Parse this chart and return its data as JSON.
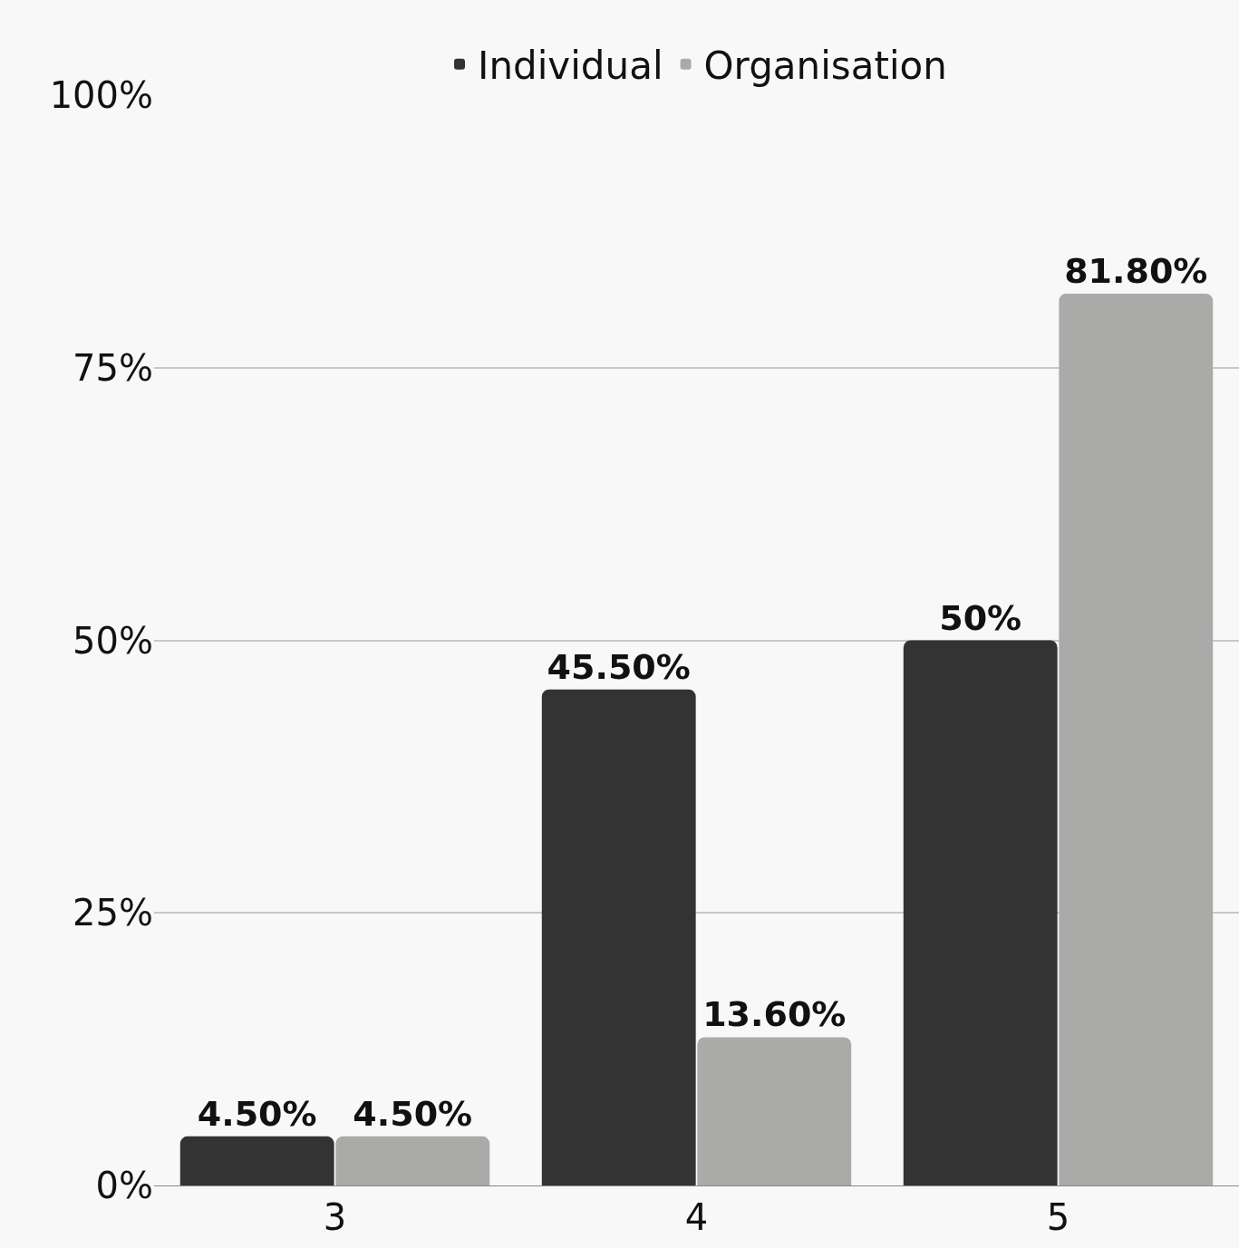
{
  "chart_data": {
    "type": "bar",
    "categories": [
      "3",
      "4",
      "5"
    ],
    "series": [
      {
        "name": "Individual",
        "color": "#333333",
        "values": [
          4.5,
          45.5,
          50
        ],
        "value_labels": [
          "4.50%",
          "45.50%",
          "50%"
        ]
      },
      {
        "name": "Organisation",
        "color": "#aaaaa9",
        "values": [
          4.5,
          13.6,
          81.8
        ],
        "value_labels": [
          "4.50%",
          "13.60%",
          "81.80%"
        ]
      }
    ],
    "ylim": [
      0,
      100
    ],
    "yticks": [
      {
        "value": 0,
        "label": "0%"
      },
      {
        "value": 25,
        "label": "25%"
      },
      {
        "value": 50,
        "label": "50%"
      },
      {
        "value": 75,
        "label": "75%"
      },
      {
        "value": 100,
        "label": "100%"
      }
    ],
    "grid": "y",
    "legend": "top"
  }
}
